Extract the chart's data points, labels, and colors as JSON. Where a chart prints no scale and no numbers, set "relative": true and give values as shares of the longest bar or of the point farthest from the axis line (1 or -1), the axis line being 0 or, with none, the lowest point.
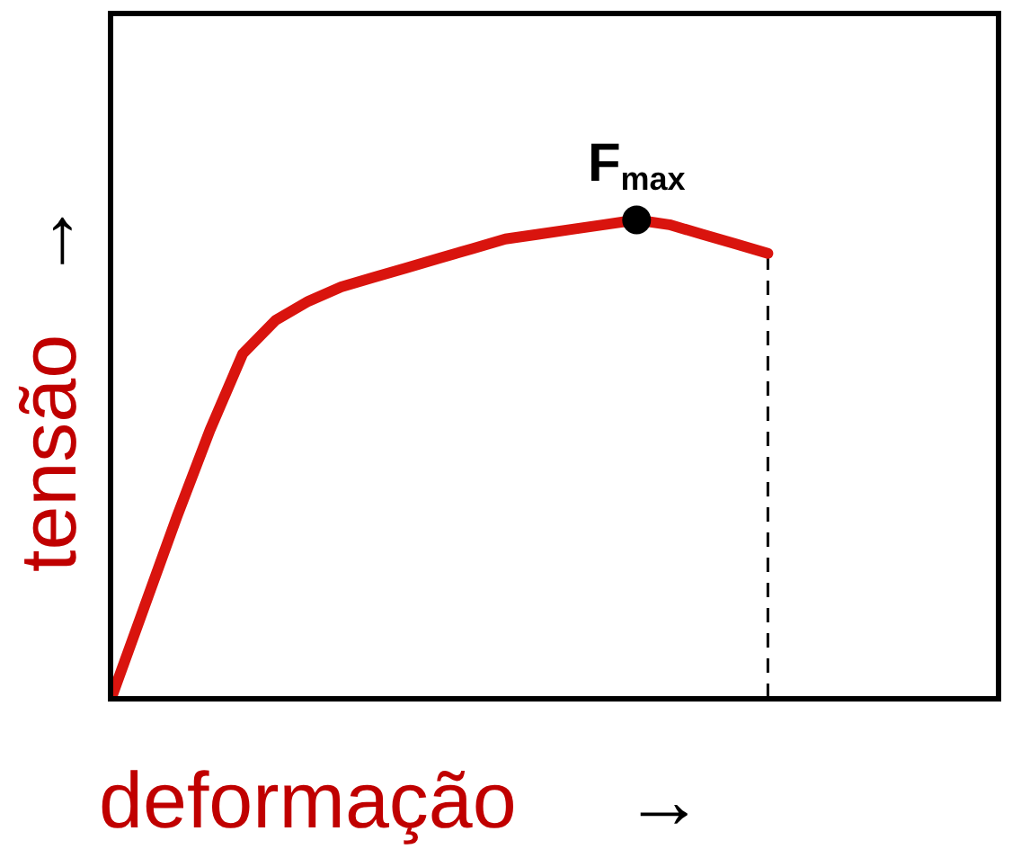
{
  "chart_data": {
    "type": "line",
    "relative": true,
    "xlabel": "deformação →",
    "ylabel": "tensão →",
    "categories": [
      null,
      null,
      null,
      null,
      null,
      null,
      null,
      null,
      null,
      null,
      null,
      null,
      null,
      null,
      null,
      null,
      null,
      null,
      null,
      null,
      null,
      null,
      null,
      null,
      null,
      null,
      null,
      null
    ],
    "series": [
      {
        "color": "#d9140e",
        "values": [
          0,
          0.19,
          0.38,
          0.56,
          0.72,
          0.79,
          0.83,
          0.86,
          0.88,
          0.9,
          0.92,
          0.94,
          0.96,
          0.97,
          0.98,
          0.99,
          1.0,
          0.99,
          0.97,
          0.95,
          0.93,
          null,
          null,
          null,
          null,
          null,
          null,
          null
        ]
      }
    ],
    "annotations": [
      {
        "text": "F$_{max}$",
        "y": 1.0
      }
    ],
    "marker": "none",
    "line_style": "solid",
    "grid": false
  }
}
